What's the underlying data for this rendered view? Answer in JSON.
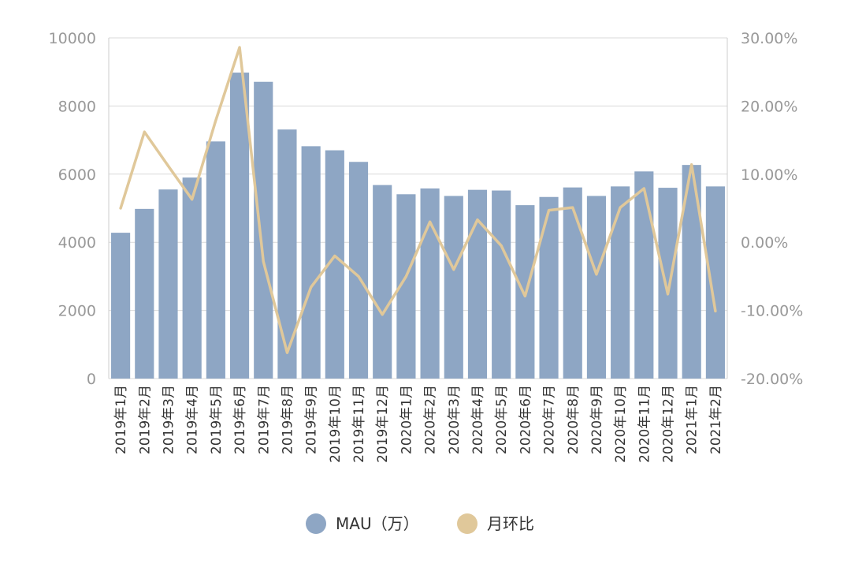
{
  "chart_data": {
    "type": "bar",
    "categories": [
      "2019年1月",
      "2019年2月",
      "2019年3月",
      "2019年4月",
      "2019年5月",
      "2019年6月",
      "2019年7月",
      "2019年8月",
      "2019年9月",
      "2019年10月",
      "2019年11月",
      "2019年12月",
      "2020年1月",
      "2020年2月",
      "2020年3月",
      "2020年4月",
      "2020年5月",
      "2020年6月",
      "2020年7月",
      "2020年8月",
      "2020年9月",
      "2020年10月",
      "2020年11月",
      "2020年12月",
      "2021年1月",
      "2021年2月"
    ],
    "series": [
      {
        "name": "MAU（万）",
        "type": "bar",
        "axis": "left",
        "color": "#8ea6c4",
        "values": [
          4280,
          4980,
          5550,
          5900,
          6960,
          8980,
          8710,
          7310,
          6820,
          6700,
          6360,
          5680,
          5410,
          5580,
          5360,
          5540,
          5520,
          5090,
          5330,
          5610,
          5360,
          5640,
          6080,
          5600,
          6270,
          5640
        ]
      },
      {
        "name": "月环比",
        "type": "line",
        "axis": "right",
        "color": "#e0c89a",
        "values": [
          5.0,
          16.2,
          11.2,
          6.3,
          17.9,
          28.6,
          -2.8,
          -16.2,
          -6.6,
          -2.0,
          -5.0,
          -10.6,
          -5.0,
          3.0,
          -4.0,
          3.3,
          -0.5,
          -7.9,
          4.7,
          5.1,
          -4.7,
          5.1,
          7.9,
          -7.6,
          11.4,
          -10.1
        ]
      }
    ],
    "y_left": {
      "min": 0,
      "max": 10000,
      "ticks": [
        0,
        2000,
        4000,
        6000,
        8000,
        10000
      ]
    },
    "y_right": {
      "min": -20,
      "max": 30,
      "ticks": [
        "-20.00%",
        "-10.00%",
        "0.00%",
        "10.00%",
        "20.00%",
        "30.00%"
      ]
    },
    "grid": true,
    "legend_position": "bottom"
  }
}
